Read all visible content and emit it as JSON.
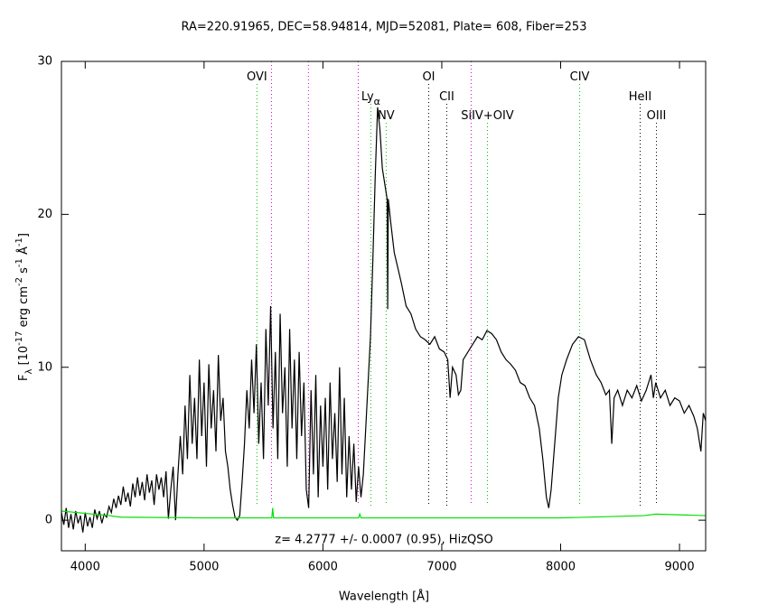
{
  "chart_data": {
    "type": "line",
    "title": "RA=220.91965, DEC=58.94814, MJD=52081, Plate= 608, Fiber=253",
    "xlabel": "Wavelength [Å]",
    "ylabel": [
      "F",
      "λ",
      " [10",
      "-17",
      " erg cm",
      "-2",
      " s",
      "-1",
      " Å",
      "-1",
      "]"
    ],
    "ylabel_shift": [
      0,
      -1,
      0,
      1,
      0,
      1,
      0,
      1,
      0,
      1,
      0
    ],
    "annotation": "z= 4.2777 +/- 0.0007 (0.95), HizQSO",
    "xlim": [
      3800,
      9220
    ],
    "ylim": [
      -2,
      30
    ],
    "xticks": [
      4000,
      5000,
      6000,
      7000,
      8000,
      9000
    ],
    "yticks": [
      0,
      10,
      20,
      30
    ],
    "series": [
      {
        "color": "#000000",
        "x": [
          3800,
          3820,
          3840,
          3860,
          3880,
          3900,
          3920,
          3940,
          3960,
          3980,
          4000,
          4020,
          4040,
          4060,
          4080,
          4100,
          4120,
          4140,
          4160,
          4180,
          4200,
          4220,
          4240,
          4260,
          4280,
          4300,
          4320,
          4340,
          4360,
          4380,
          4400,
          4420,
          4440,
          4460,
          4480,
          4500,
          4520,
          4540,
          4560,
          4580,
          4600,
          4620,
          4640,
          4660,
          4680,
          4700,
          4720,
          4740,
          4760,
          4780,
          4800,
          4820,
          4840,
          4860,
          4880,
          4900,
          4920,
          4940,
          4960,
          4980,
          5000,
          5020,
          5040,
          5060,
          5080,
          5100,
          5120,
          5140,
          5160,
          5180,
          5200,
          5220,
          5240,
          5260,
          5280,
          5300,
          5320,
          5340,
          5360,
          5380,
          5400,
          5420,
          5440,
          5460,
          5480,
          5500,
          5520,
          5540,
          5560,
          5580,
          5600,
          5620,
          5640,
          5660,
          5680,
          5700,
          5720,
          5740,
          5760,
          5780,
          5800,
          5820,
          5840,
          5860,
          5880,
          5900,
          5920,
          5940,
          5960,
          5980,
          6000,
          6020,
          6040,
          6060,
          6080,
          6100,
          6120,
          6140,
          6160,
          6180,
          6200,
          6220,
          6240,
          6260,
          6280,
          6300,
          6320,
          6340,
          6360,
          6380,
          6400,
          6420,
          6440,
          6460,
          6480,
          6500,
          6520,
          6540,
          6545,
          6550,
          6570,
          6600,
          6630,
          6660,
          6700,
          6740,
          6780,
          6820,
          6860,
          6900,
          6940,
          6980,
          7020,
          7050,
          7070,
          7090,
          7120,
          7140,
          7160,
          7180,
          7220,
          7260,
          7300,
          7340,
          7380,
          7420,
          7460,
          7500,
          7540,
          7580,
          7620,
          7660,
          7700,
          7740,
          7780,
          7820,
          7850,
          7880,
          7900,
          7920,
          7950,
          7980,
          8010,
          8050,
          8100,
          8150,
          8200,
          8250,
          8300,
          8340,
          8380,
          8410,
          8430,
          8450,
          8480,
          8520,
          8560,
          8600,
          8640,
          8680,
          8720,
          8760,
          8780,
          8800,
          8840,
          8880,
          8920,
          8960,
          9000,
          9040,
          9080,
          9120,
          9150,
          9180,
          9200,
          9220
        ],
        "values": [
          0.5,
          -0.3,
          0.8,
          -0.5,
          0.4,
          -0.6,
          0.6,
          -0.2,
          0.3,
          -0.8,
          0.5,
          -0.4,
          0.2,
          -0.5,
          0.7,
          0.1,
          0.6,
          -0.2,
          0.4,
          0.2,
          0.9,
          0.5,
          1.4,
          0.8,
          1.6,
          1.0,
          2.2,
          1.2,
          1.8,
          0.9,
          2.4,
          1.5,
          2.8,
          1.6,
          2.5,
          1.3,
          3.0,
          1.8,
          2.6,
          1.0,
          3.0,
          2.0,
          2.8,
          1.5,
          3.2,
          0.1,
          2.0,
          3.5,
          0.0,
          3.0,
          5.5,
          3.0,
          7.5,
          4.0,
          9.5,
          5.0,
          8.0,
          4.0,
          10.5,
          5.5,
          9.0,
          3.5,
          10.2,
          6.0,
          8.5,
          4.5,
          10.8,
          6.5,
          8.0,
          4.5,
          3.5,
          2.0,
          1.0,
          0.2,
          0.0,
          0.3,
          2.5,
          5.0,
          8.5,
          6.0,
          10.5,
          7.0,
          11.5,
          5.0,
          9.0,
          4.0,
          12.5,
          7.5,
          14.0,
          6.0,
          11.0,
          4.0,
          13.5,
          7.0,
          10.0,
          3.5,
          12.5,
          6.0,
          10.5,
          4.0,
          11.0,
          5.5,
          9.0,
          2.0,
          0.8,
          8.5,
          3.0,
          9.5,
          1.5,
          7.5,
          3.5,
          8.0,
          2.0,
          9.0,
          4.0,
          7.0,
          2.5,
          10.0,
          3.0,
          8.0,
          1.5,
          5.5,
          2.0,
          5.0,
          1.2,
          3.5,
          1.5,
          3.0,
          6.0,
          9.0,
          12.0,
          17.0,
          22.5,
          27.0,
          25.5,
          23.0,
          22.0,
          21.0,
          13.8,
          21.0,
          19.5,
          17.5,
          16.5,
          15.5,
          14.0,
          13.5,
          12.5,
          12.0,
          11.8,
          11.5,
          12.0,
          11.2,
          11.0,
          10.5,
          8.0,
          10.0,
          9.5,
          8.2,
          8.5,
          10.5,
          11.0,
          11.5,
          12.0,
          11.8,
          12.4,
          12.2,
          11.8,
          11.0,
          10.5,
          10.2,
          9.8,
          9.0,
          8.8,
          8.0,
          7.5,
          6.0,
          4.0,
          1.5,
          0.8,
          2.0,
          5.0,
          8.0,
          9.5,
          10.5,
          11.5,
          12.0,
          11.8,
          10.5,
          9.5,
          9.0,
          8.2,
          8.5,
          5.0,
          8.0,
          8.5,
          7.5,
          8.5,
          8.0,
          8.8,
          7.8,
          8.5,
          9.5,
          8.0,
          9.0,
          8.0,
          8.5,
          7.5,
          8.0,
          7.8,
          7.0,
          7.5,
          6.8,
          6.0,
          4.5,
          7.0,
          6.5
        ]
      },
      {
        "color": "#00e000",
        "x": [
          3800,
          4200,
          4300,
          5000,
          5570,
          5577,
          5585,
          6000,
          6300,
          6310,
          6320,
          7000,
          8000,
          8700,
          8800,
          9220
        ],
        "values": [
          0.6,
          0.3,
          0.2,
          0.15,
          0.15,
          0.8,
          0.15,
          0.15,
          0.15,
          0.4,
          0.15,
          0.15,
          0.15,
          0.3,
          0.4,
          0.3
        ]
      }
    ],
    "lines": [
      {
        "name": "OVI",
        "x": 5445,
        "color": "#00c000"
      },
      {
        "name": "Ly",
        "sub": "α",
        "x": 6403,
        "color": "#00c000"
      },
      {
        "name": "NV",
        "x": 6532,
        "color": "#00c000"
      },
      {
        "name": "OI",
        "x": 6890,
        "color": "#000000"
      },
      {
        "name": "CII",
        "x": 7042,
        "color": "#000000"
      },
      {
        "name": "SiIV+OIV",
        "x": 7384,
        "color": "#00c000"
      },
      {
        "name": "CIV",
        "x": 8160,
        "color": "#00c000"
      },
      {
        "name": "HeII",
        "x": 8669,
        "color": "#000000"
      },
      {
        "name": "OIII",
        "x": 8806,
        "color": "#000000"
      }
    ],
    "sky_lines": {
      "color": "#d000d0",
      "x": [
        5567,
        5878,
        6297,
        7247
      ]
    }
  }
}
